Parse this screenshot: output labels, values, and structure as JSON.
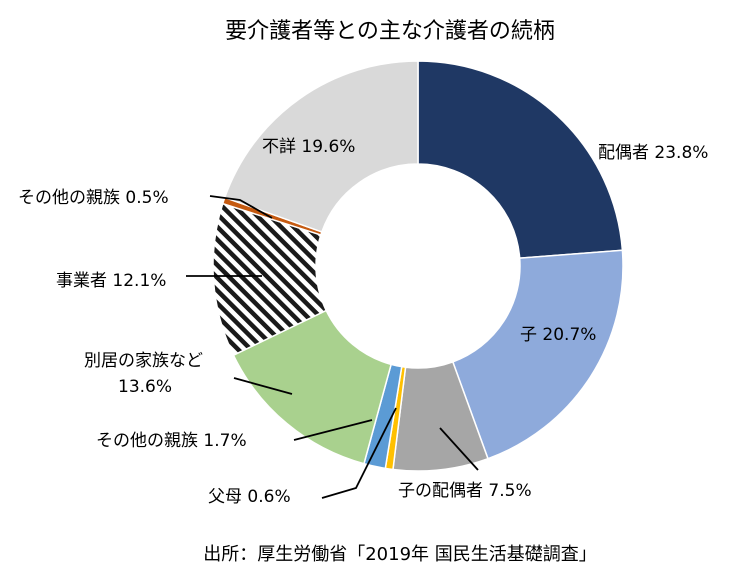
{
  "chart_data": {
    "type": "pie",
    "title": "要介護者等との主な介護者の続柄",
    "unit": "%",
    "legend": "none",
    "categories": [
      "配偶者",
      "子",
      "子の配偶者",
      "父母",
      "その他の親族",
      "別居の家族など",
      "事業者",
      "その他の親族",
      "不詳"
    ],
    "values": [
      23.8,
      20.7,
      7.5,
      0.6,
      1.7,
      13.6,
      12.1,
      0.5,
      19.6
    ],
    "colors": [
      "#1f3864",
      "#8eaadb",
      "#a6a6a6",
      "#ffc000",
      "#5b9bd5",
      "#a9d18e",
      "hatch",
      "#c55a11",
      "#d9d9d9"
    ],
    "labels": [
      {
        "line1": "配偶者 23.8%",
        "line2": ""
      },
      {
        "line1": "子 20.7%",
        "line2": ""
      },
      {
        "line1": "子の配偶者 7.5%",
        "line2": ""
      },
      {
        "line1": "父母 0.6%",
        "line2": ""
      },
      {
        "line1": "その他の親族 1.7%",
        "line2": ""
      },
      {
        "line1": "別居の家族など",
        "line2": "13.6%"
      },
      {
        "line1": "事業者 12.1%",
        "line2": ""
      },
      {
        "line1": "その他の親族 0.5%",
        "line2": ""
      },
      {
        "line1": "不詳 19.6%",
        "line2": ""
      }
    ],
    "source": "出所：厚生労働省「2019年 国民生活基礎調査」"
  }
}
